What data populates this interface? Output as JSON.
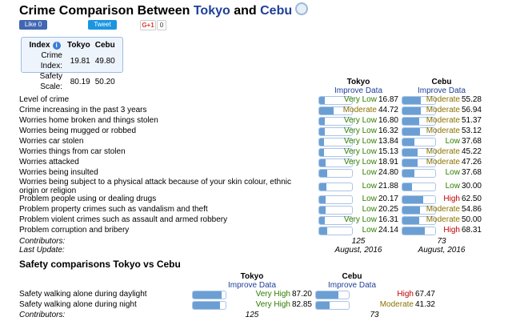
{
  "header": {
    "title_prefix": "Crime Comparison Between ",
    "city_a": "Tokyo",
    "and": " and ",
    "city_b": "Cebu"
  },
  "social": {
    "like": "Like 0",
    "tweet": "Tweet",
    "gplus": "G+1",
    "gplus_count": "0"
  },
  "index_box": {
    "header": "Index",
    "col_a": "Tokyo",
    "col_b": "Cebu",
    "rows": [
      {
        "label": "Crime Index:",
        "a": "19.81",
        "b": "49.80"
      },
      {
        "label": "Safety Scale:",
        "a": "80.19",
        "b": "50.20"
      }
    ]
  },
  "crime_table": {
    "col_a": "Tokyo",
    "col_b": "Cebu",
    "improve": "Improve Data",
    "rows": [
      {
        "label": "Level of crime",
        "a_level": "Very Low",
        "a_value": "16.87",
        "b_level": "Moderate",
        "b_value": "55.28"
      },
      {
        "label": "Crime increasing in the past 3 years",
        "a_level": "Moderate",
        "a_value": "44.72",
        "b_level": "Moderate",
        "b_value": "56.94"
      },
      {
        "label": "Worries home broken and things stolen",
        "a_level": "Very Low",
        "a_value": "16.80",
        "b_level": "Moderate",
        "b_value": "51.37"
      },
      {
        "label": "Worries being mugged or robbed",
        "a_level": "Very Low",
        "a_value": "16.32",
        "b_level": "Moderate",
        "b_value": "53.12"
      },
      {
        "label": "Worries car stolen",
        "a_level": "Very Low",
        "a_value": "13.84",
        "b_level": "Low",
        "b_value": "37.68"
      },
      {
        "label": "Worries things from car stolen",
        "a_level": "Very Low",
        "a_value": "15.13",
        "b_level": "Moderate",
        "b_value": "45.22"
      },
      {
        "label": "Worries attacked",
        "a_level": "Very Low",
        "a_value": "18.91",
        "b_level": "Moderate",
        "b_value": "47.26"
      },
      {
        "label": "Worries being insulted",
        "a_level": "Low",
        "a_value": "24.80",
        "b_level": "Low",
        "b_value": "37.68"
      },
      {
        "label": "Worries being subject to a physical attack because of your skin colour, ethnic origin or religion",
        "a_level": "Low",
        "a_value": "21.88",
        "b_level": "Low",
        "b_value": "30.00"
      },
      {
        "label": "Problem people using or dealing drugs",
        "a_level": "Low",
        "a_value": "20.17",
        "b_level": "High",
        "b_value": "62.50"
      },
      {
        "label": "Problem property crimes such as vandalism and theft",
        "a_level": "Low",
        "a_value": "20.25",
        "b_level": "Moderate",
        "b_value": "54.86"
      },
      {
        "label": "Problem violent crimes such as assault and armed robbery",
        "a_level": "Very Low",
        "a_value": "16.31",
        "b_level": "Moderate",
        "b_value": "50.00"
      },
      {
        "label": "Problem corruption and bribery",
        "a_level": "Low",
        "a_value": "24.14",
        "b_level": "High",
        "b_value": "68.31"
      }
    ],
    "contributors_label": "Contributors:",
    "contributors_a": "125",
    "contributors_b": "73",
    "update_label": "Last Update:",
    "update_a": "August, 2016",
    "update_b": "August, 2016"
  },
  "safety_table": {
    "heading": "Safety comparisons Tokyo vs Cebu",
    "col_a": "Tokyo",
    "col_b": "Cebu",
    "improve": "Improve Data",
    "rows": [
      {
        "label": "Safety walking alone during daylight",
        "a_level": "Very High",
        "a_value": "87.20",
        "b_level": "High",
        "b_value": "67.47"
      },
      {
        "label": "Safety walking alone during night",
        "a_level": "Very High",
        "a_value": "82.85",
        "b_level": "Moderate",
        "b_value": "41.32"
      }
    ],
    "contributors_label": "Contributors:",
    "contributors_a": "125",
    "contributors_b": "73"
  },
  "level_colors": {
    "Very Low": "#2e7d00",
    "Low": "#2e7d00",
    "Moderate": "#8a7200",
    "High": "#c00000",
    "Very High": "#2e7d00"
  },
  "colors": {
    "bar_fill": "#6b9fd4",
    "bar_border": "#aac4e6",
    "link": "#1f3f99"
  }
}
